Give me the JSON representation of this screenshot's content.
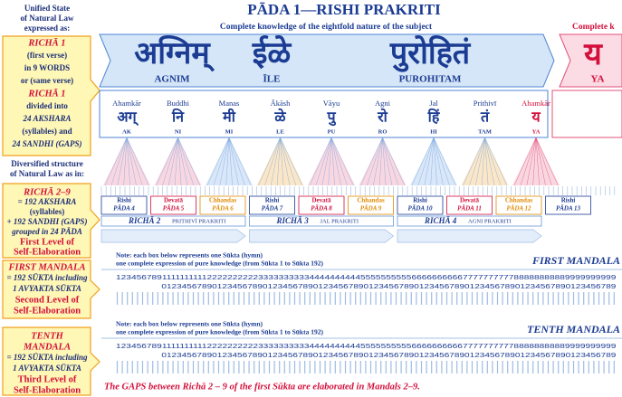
{
  "left_panel": {
    "intro": [
      "Unified State",
      "of Natural Law",
      "expressed as:"
    ],
    "richa1": [
      "RICHĀ 1",
      "(first verse)",
      "in 9 WORDS",
      "or (same verse)",
      "RICHĀ 1",
      "divided into",
      "24 AKSHARA",
      "(syllables) and",
      "24 SANDHI (GAPS)"
    ],
    "diversified": [
      "Diversified structure",
      "of Natural Law as in:"
    ],
    "richa2_9": [
      "RICHĀ 2–9",
      "= 192 AKSHARA",
      "(syllables)",
      "+ 192 SANDHI (GAPS)",
      "grouped in 24 PĀDA",
      "First Level of",
      "Self-Elaboration"
    ],
    "first_mandala": [
      "FIRST MANDALA",
      "= 192 SŪKTA including",
      "1 AVYAKTA SŪKTA",
      "Second Level of",
      "Self-Elaboration"
    ],
    "tenth_mandala": [
      "TENTH",
      "MANDALA",
      "= 192 SŪKTA including",
      "1 AVYAKTA SŪKTA",
      "Third Level of",
      "Self-Elaboration"
    ]
  },
  "header": {
    "title": "PĀDA 1—RISHI PRAKRITI",
    "subtitle": "Complete knowledge of the eightfold nature of the subject",
    "next_subtitle": "Complete k"
  },
  "words": [
    {
      "devanagari": "अग्निम्",
      "roman": "AGNIM"
    },
    {
      "devanagari": "ईळे",
      "roman": "ĪLE"
    },
    {
      "devanagari": "पुरोहितं",
      "roman": "PUROHITAM"
    }
  ],
  "next_word": {
    "devanagari": "य",
    "roman": "YA"
  },
  "syllables": [
    {
      "name": "Ahamkār",
      "devanagari": "अग्",
      "roman": "AK"
    },
    {
      "name": "Buddhi",
      "devanagari": "नि",
      "roman": "NI"
    },
    {
      "name": "Manas",
      "devanagari": "मी",
      "roman": "MI"
    },
    {
      "name": "Ākāsh",
      "devanagari": "ळे",
      "roman": "LE"
    },
    {
      "name": "Vāyu",
      "devanagari": "पु",
      "roman": "PU"
    },
    {
      "name": "Agni",
      "devanagari": "रो",
      "roman": "RO"
    },
    {
      "name": "Jal",
      "devanagari": "हिं",
      "roman": "HI"
    },
    {
      "name": "Prithivī",
      "devanagari": "तं",
      "roman": "TAM"
    },
    {
      "name": "Ahamkār",
      "devanagari": "य",
      "roman": "YA"
    }
  ],
  "padas": [
    {
      "name": "Rishi",
      "label": "PĀDA 4"
    },
    {
      "name": "Devatā",
      "label": "PĀDA 5"
    },
    {
      "name": "Chhandas",
      "label": "PĀDA 6"
    },
    {
      "name": "Rishi",
      "label": "PĀDA 7"
    },
    {
      "name": "Devatā",
      "label": "PĀDA 8"
    },
    {
      "name": "Chhandas",
      "label": "PĀDA 9"
    },
    {
      "name": "Rishi",
      "label": "PĀDA 10"
    },
    {
      "name": "Devatā",
      "label": "PĀDA 11"
    },
    {
      "name": "Chhandas",
      "label": "PĀDA 12"
    },
    {
      "name": "Rishi",
      "label": "PĀDA 13"
    }
  ],
  "richas": [
    {
      "richa": "RICHĀ 2",
      "prakriti": "PRITHIVĪ PRAKRITI"
    },
    {
      "richa": "RICHĀ 3",
      "prakriti": "JAL PRAKRITI"
    },
    {
      "richa": "RICHĀ 4",
      "prakriti": "AGNI PRAKRITI"
    }
  ],
  "mandalas": [
    {
      "note": [
        "Note: each box below represents one Sūkta (hymn)",
        "one complete expression of pure knowledge (from Sūkta 1 to Sūkta 192)"
      ],
      "title": "FIRST MANDALA",
      "digits_top": "123456789111111111122222222223333333333444444444455555555556666666666777777777788888888889999999999",
      "digits_bottom": "012345678901234567890123456789012345678901234567890123456789012345678901234567890123456789"
    },
    {
      "note": [
        "Note: each box below represents one Sūkta (hymn)",
        "one complete expression of pure knowledge (from Sūkta 1 to Sūkta 192)"
      ],
      "title": "TENTH MANDALA",
      "digits_top": "123456789111111111122222222223333333333444444444455555555556666666666777777777788888888889999999999",
      "digits_bottom": "012345678901234567890123456789012345678901234567890123456789012345678901234567890123456789"
    }
  ],
  "footer": "The GAPS between Richā 2 – 9 of the first Sūkta are elaborated in Mandals 2–9."
}
